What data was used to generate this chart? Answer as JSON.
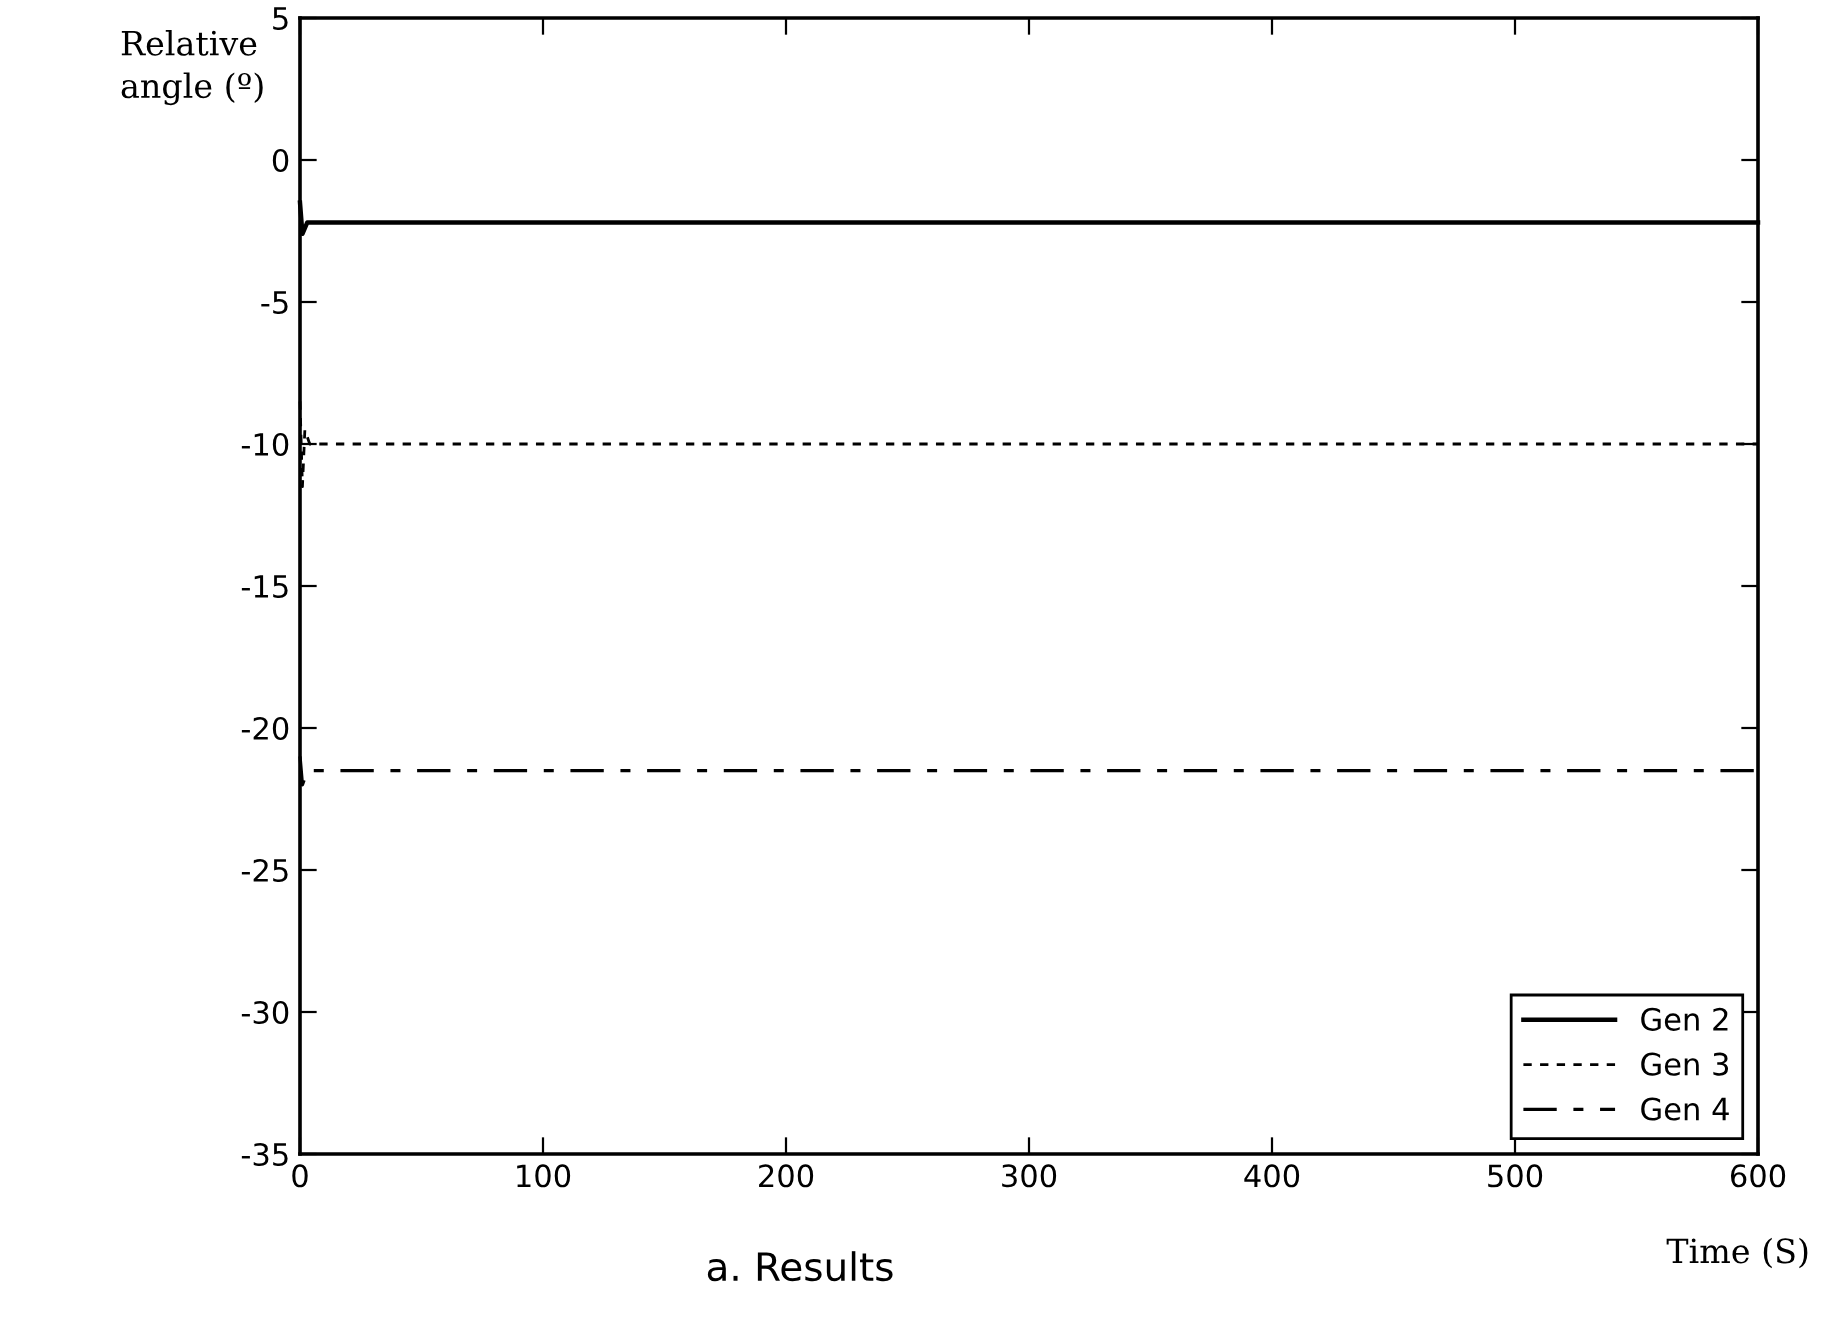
{
  "chart_data": {
    "type": "line",
    "xlabel": "Time (S)",
    "ylabel": "Relative\nangle (º)",
    "annotations": [
      "a. Results"
    ],
    "xlim": [
      0,
      600
    ],
    "xticks": [
      0,
      100,
      200,
      300,
      400,
      500,
      600
    ],
    "ylim": [
      -35,
      5
    ],
    "yticks": [
      -35,
      -30,
      -25,
      -20,
      -15,
      -10,
      -5,
      0,
      5
    ],
    "grid": false,
    "legend": "bottom right",
    "series": [
      {
        "name": "Gen 2",
        "color": "#000000",
        "line_style": "solid",
        "x": [
          0,
          1,
          3,
          600
        ],
        "values": [
          -1.5,
          -2.6,
          -2.2,
          -2.2
        ]
      },
      {
        "name": "Gen 3",
        "color": "#000000",
        "line_style": "dotted",
        "x": [
          0,
          1,
          2,
          4,
          600
        ],
        "values": [
          -8.5,
          -11.5,
          -9.5,
          -10,
          -10
        ]
      },
      {
        "name": "Gen 4",
        "color": "#000000",
        "line_style": "dashed",
        "x": [
          0,
          1,
          3,
          600
        ],
        "values": [
          -21,
          -22,
          -21.5,
          -21.5
        ]
      }
    ]
  }
}
